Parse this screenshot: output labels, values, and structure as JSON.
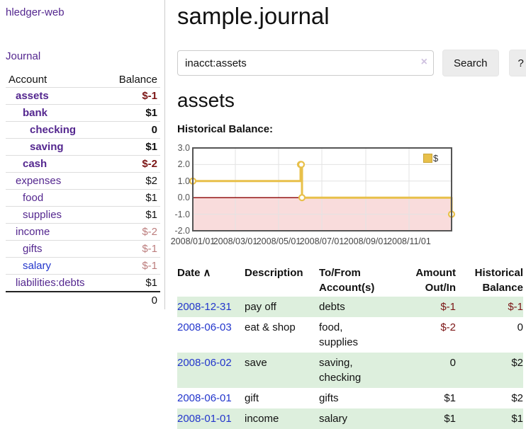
{
  "app": {
    "brand": "hledger-web",
    "nav": {
      "journal": "Journal"
    }
  },
  "sidebar": {
    "header": {
      "account": "Account",
      "balance": "Balance"
    },
    "accounts": [
      {
        "name": "assets",
        "depth": 1,
        "bold": true,
        "balance": "$-1",
        "balance_style": "neg-strong"
      },
      {
        "name": "bank",
        "depth": 2,
        "bold": true,
        "balance": "$1",
        "balance_style": "strong"
      },
      {
        "name": "checking",
        "depth": 3,
        "bold": true,
        "balance": "0",
        "balance_style": "strong"
      },
      {
        "name": "saving",
        "depth": 3,
        "bold": true,
        "balance": "$1",
        "balance_style": "strong"
      },
      {
        "name": "cash",
        "depth": 2,
        "bold": true,
        "balance": "$-2",
        "balance_style": "neg-strong"
      },
      {
        "name": "expenses",
        "depth": 1,
        "bold": false,
        "balance": "$2",
        "balance_style": "plain"
      },
      {
        "name": "food",
        "depth": 2,
        "bold": false,
        "balance": "$1",
        "balance_style": "plain"
      },
      {
        "name": "supplies",
        "depth": 2,
        "bold": false,
        "balance": "$1",
        "balance_style": "plain"
      },
      {
        "name": "income",
        "depth": 1,
        "bold": false,
        "balance": "$-2",
        "balance_style": "neg-soft"
      },
      {
        "name": "gifts",
        "depth": 2,
        "bold": false,
        "balance": "$-1",
        "balance_style": "neg-soft"
      },
      {
        "name": "salary",
        "depth": 2,
        "bold": false,
        "balance": "$-1",
        "balance_style": "neg-soft",
        "link_color": "blue"
      },
      {
        "name": "liabilities:debts",
        "depth": 1,
        "bold": false,
        "balance": "$1",
        "balance_style": "plain"
      }
    ],
    "total": "0"
  },
  "main": {
    "title": "sample.journal",
    "search": {
      "value": "inacct:assets",
      "clear_icon": "×",
      "search_button": "Search",
      "help_button": "?"
    },
    "account_title": "assets",
    "chart_heading": "Historical Balance:"
  },
  "chart_data": {
    "type": "line",
    "step": true,
    "title": "Historical Balance",
    "ylim": [
      -2,
      3
    ],
    "yticks": [
      "3.0",
      "2.0",
      "1.0",
      "0.0",
      "-1.0",
      "-2.0"
    ],
    "xticks": [
      {
        "label": "2008/01/01",
        "date": "2008-01-01"
      },
      {
        "label": "2008/03/01",
        "date": "2008-03-01"
      },
      {
        "label": "2008/05/01",
        "date": "2008-05-01"
      },
      {
        "label": "2008/07/01",
        "date": "2008-07-01"
      },
      {
        "label": "2008/09/01",
        "date": "2008-09-01"
      },
      {
        "label": "2008/11/01",
        "date": "2008-11-01"
      }
    ],
    "x_range": [
      "2008-01-01",
      "2008-12-31"
    ],
    "series": [
      {
        "name": "$",
        "color": "#e8c04a",
        "points": [
          {
            "date": "2008-01-01",
            "value": 1
          },
          {
            "date": "2008-06-01",
            "value": 2
          },
          {
            "date": "2008-06-02",
            "value": 2
          },
          {
            "date": "2008-06-03",
            "value": 0
          },
          {
            "date": "2008-12-31",
            "value": -1
          }
        ]
      }
    ],
    "legend": [
      {
        "label": "$",
        "color": "#e8c04a"
      }
    ],
    "negative_region": {
      "from": 0,
      "to": -2,
      "color": "#f9dcdc"
    },
    "zero_line_color": "#8b0000",
    "grid": true
  },
  "register": {
    "header": {
      "date": "Date",
      "sort_icon": "∧",
      "description": "Description",
      "accounts_l1": "To/From",
      "accounts_l2": "Account(s)",
      "amount_l1": "Amount",
      "amount_l2": "Out/In",
      "balance_l1": "Historical",
      "balance_l2": "Balance"
    },
    "rows": [
      {
        "date": "2008-12-31",
        "description": "pay off",
        "accounts": "debts",
        "amount": "$-1",
        "amount_neg": true,
        "balance": "$-1",
        "balance_neg": true
      },
      {
        "date": "2008-06-03",
        "description": "eat & shop",
        "accounts": "food, supplies",
        "amount": "$-2",
        "amount_neg": true,
        "balance": "0",
        "balance_neg": false
      },
      {
        "date": "2008-06-02",
        "description": "save",
        "accounts": "saving, checking",
        "amount": "0",
        "amount_neg": false,
        "balance": "$2",
        "balance_neg": false
      },
      {
        "date": "2008-06-01",
        "description": "gift",
        "accounts": "gifts",
        "amount": "$1",
        "amount_neg": false,
        "balance": "$2",
        "balance_neg": false
      },
      {
        "date": "2008-01-01",
        "description": "income",
        "accounts": "salary",
        "amount": "$1",
        "amount_neg": false,
        "balance": "$1",
        "balance_neg": false
      }
    ]
  },
  "colors": {
    "link_purple": "#54278f",
    "link_blue": "#2336cc",
    "neg_strong": "#7c1616",
    "neg_soft": "#bc7d7d",
    "row_green": "#ddefdd",
    "chart_line": "#e8c04a",
    "chart_negative_bg": "#f9dcdc",
    "chart_zero_line": "#8b0000"
  }
}
